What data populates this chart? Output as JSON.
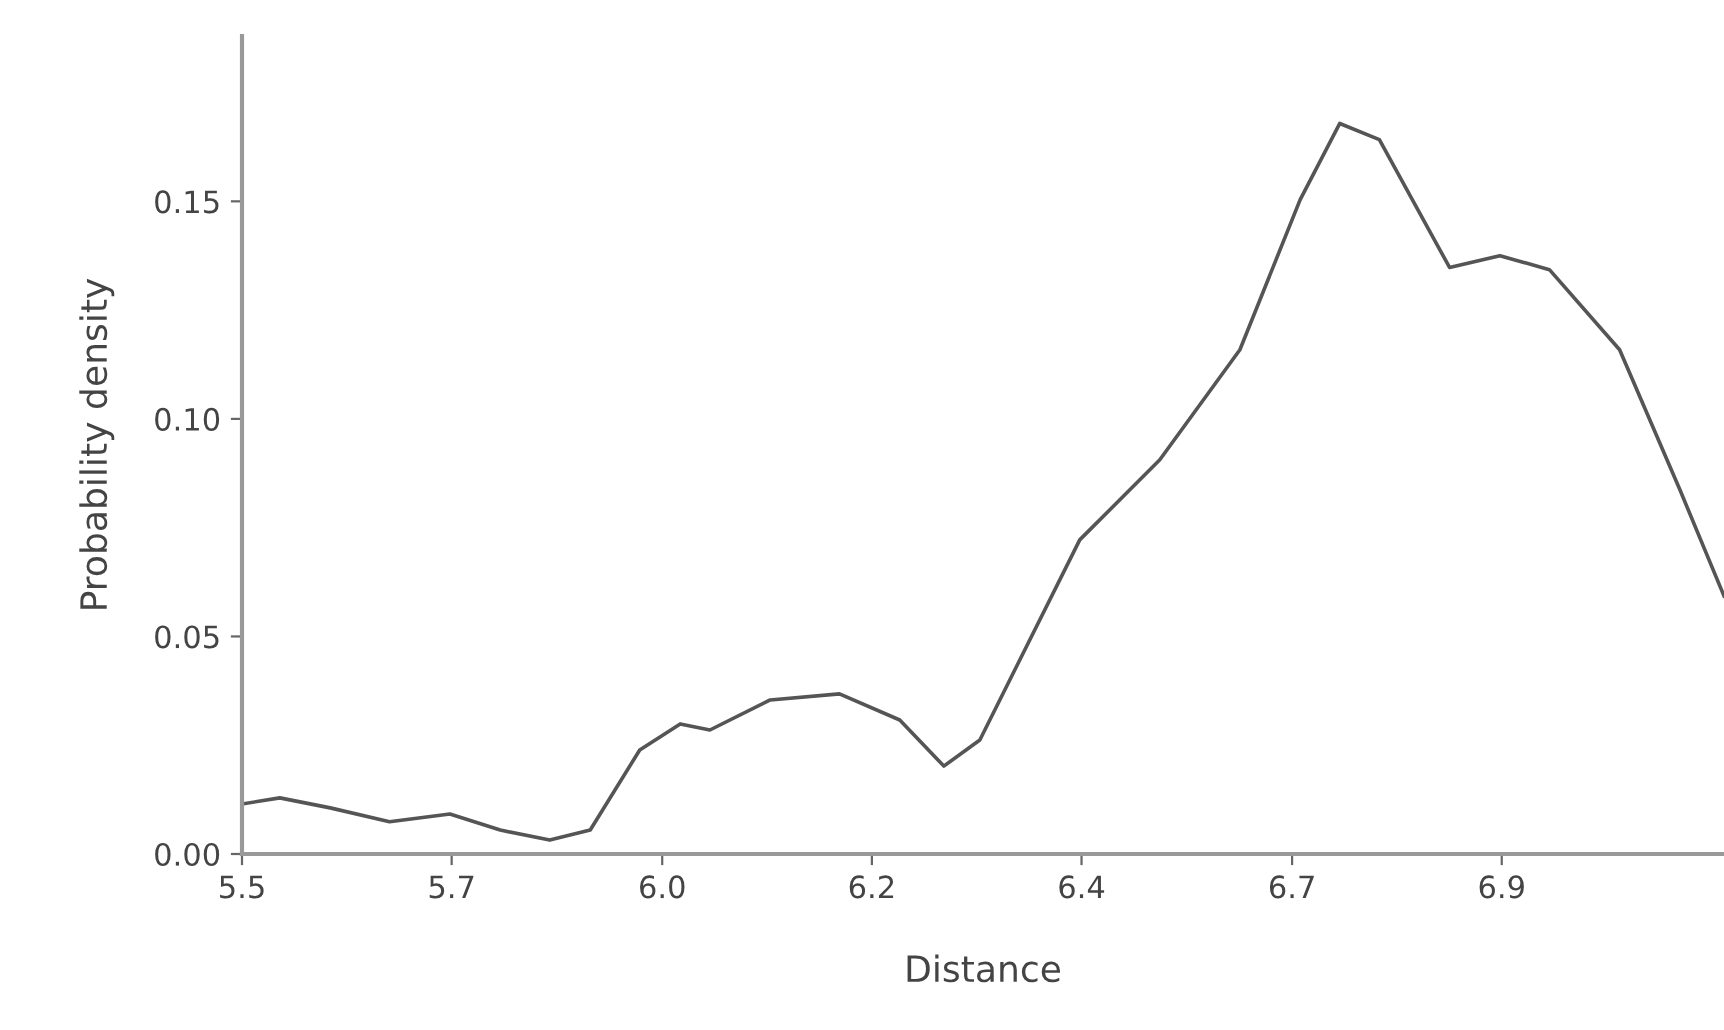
{
  "chart_data": {
    "type": "line",
    "xlabel": "Distance",
    "ylabel": "Probability density",
    "x": [
      5.5,
      5.542,
      5.598,
      5.664,
      5.731,
      5.787,
      5.842,
      5.887,
      5.942,
      5.987,
      6.02,
      6.087,
      6.164,
      6.231,
      6.28,
      6.32,
      6.431,
      6.52,
      6.609,
      6.676,
      6.72,
      6.764,
      6.842,
      6.898,
      6.953,
      7.031,
      7.098,
      7.147
    ],
    "series": [
      {
        "color": "#555555",
        "values": [
          0.0115,
          0.0129,
          0.0106,
          0.0074,
          0.0092,
          0.0055,
          0.0032,
          0.0055,
          0.0239,
          0.0299,
          0.0285,
          0.0354,
          0.0368,
          0.0308,
          0.0202,
          0.0262,
          0.0722,
          0.0906,
          0.1159,
          0.1504,
          0.1679,
          0.1642,
          0.1348,
          0.1375,
          0.1343,
          0.1159,
          0.0837,
          0.0593
        ]
      }
    ],
    "xlim": [
      5.5,
      7.147
    ],
    "xticks": [
      {
        "value": 5.5,
        "label": "5.5"
      },
      {
        "value": 5.733,
        "label": "5.7"
      },
      {
        "value": 5.967,
        "label": "6.0"
      },
      {
        "value": 6.2,
        "label": "6.2"
      },
      {
        "value": 6.433,
        "label": "6.4"
      },
      {
        "value": 6.667,
        "label": "6.7"
      },
      {
        "value": 6.9,
        "label": "6.9"
      }
    ],
    "ylim": [
      0,
      0.188
    ],
    "yticks": [
      {
        "value": 0,
        "label": "0.00"
      },
      {
        "value": 0.05,
        "label": "0.05"
      },
      {
        "value": 0.1,
        "label": "0.10"
      },
      {
        "value": 0.15,
        "label": "0.15"
      }
    ],
    "grid": false,
    "legend": false,
    "marker": "none",
    "line_style": "solid"
  }
}
